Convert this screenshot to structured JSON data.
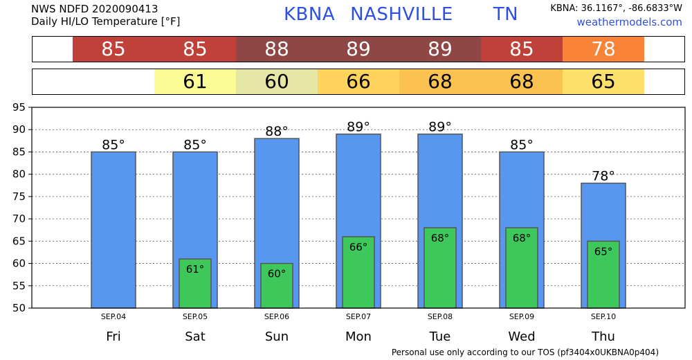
{
  "header": {
    "line1": "NWS NDFD 2020090413",
    "line2": "Daily HI/LO Temperature [°F]",
    "station_code": "KBNA",
    "station_name": "NASHVILLE",
    "state": "TN",
    "coords": "KBNA: 36.1167°, -86.6833°W",
    "site": "weathermodels.com"
  },
  "footer": "Personal use only according to our TOS (pf3404x0UKBNA0p404)",
  "strips": {
    "hi": [
      {
        "label": "85",
        "color": "#c0403a"
      },
      {
        "label": "85",
        "color": "#c0403a"
      },
      {
        "label": "88",
        "color": "#8e4744"
      },
      {
        "label": "89",
        "color": "#8e4744"
      },
      {
        "label": "89",
        "color": "#8e4744"
      },
      {
        "label": "85",
        "color": "#c0403a"
      },
      {
        "label": "78",
        "color": "#f98336"
      }
    ],
    "lo": [
      {
        "label": "",
        "color": "#ffffff"
      },
      {
        "label": "61",
        "color": "#fcfc96"
      },
      {
        "label": "60",
        "color": "#e6e6a6"
      },
      {
        "label": "66",
        "color": "#fdd35d"
      },
      {
        "label": "68",
        "color": "#fbc252"
      },
      {
        "label": "68",
        "color": "#fbc252"
      },
      {
        "label": "65",
        "color": "#fde06b"
      }
    ]
  },
  "chart_data": {
    "type": "bar",
    "categories": [
      "Fri",
      "Sat",
      "Sun",
      "Mon",
      "Tue",
      "Wed",
      "Thu"
    ],
    "dates": [
      "SEP.04",
      "SEP.05",
      "SEP.06",
      "SEP.07",
      "SEP.08",
      "SEP.09",
      "SEP.10"
    ],
    "series": [
      {
        "values": [
          85,
          85,
          88,
          89,
          89,
          85,
          78
        ],
        "color": "#5797f0",
        "labels": [
          "85°",
          "85°",
          "88°",
          "89°",
          "89°",
          "85°",
          "78°"
        ]
      },
      {
        "values": [
          null,
          61,
          60,
          66,
          68,
          68,
          65
        ],
        "color": "#3ec75a",
        "labels": [
          "",
          "61°",
          "60°",
          "66°",
          "68°",
          "68°",
          "65°"
        ]
      }
    ],
    "ylim": [
      50,
      95
    ],
    "yticks": [
      "50",
      "55",
      "60",
      "65",
      "70",
      "75",
      "80",
      "85",
      "90",
      "95"
    ],
    "grid": true
  }
}
